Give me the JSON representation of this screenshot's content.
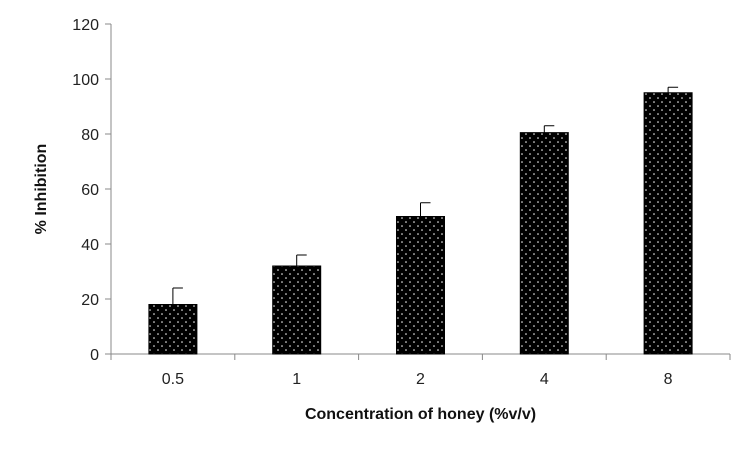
{
  "chart_data": {
    "type": "bar",
    "title": "",
    "xlabel": "Concentration of honey (%v/v)",
    "ylabel": "% Inhibition",
    "categories": [
      "0.5",
      "1",
      "2",
      "4",
      "8"
    ],
    "values": [
      18,
      32,
      50,
      80.5,
      95
    ],
    "errors": [
      6,
      4,
      5,
      2.5,
      2
    ],
    "ylim": [
      0,
      120
    ],
    "yticks": [
      0,
      20,
      40,
      60,
      80,
      100,
      120
    ],
    "grid": false,
    "legend": "none",
    "bar_color": "#000000",
    "bar_pattern": "white-dots"
  }
}
